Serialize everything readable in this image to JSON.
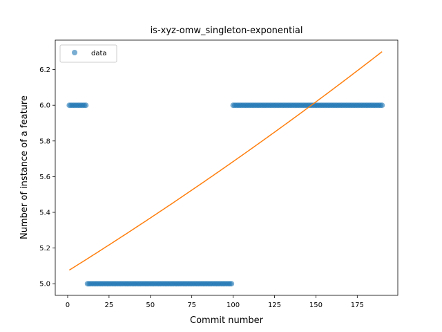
{
  "chart_data": {
    "type": "scatter",
    "title": "is-xyz-omw_singleton-exponential",
    "xlabel": "Commit number",
    "ylabel": "Number of instance of a feature",
    "xlim": [
      -7.5,
      199.5
    ],
    "ylim": [
      4.935,
      6.365
    ],
    "xticks": [
      0,
      25,
      50,
      75,
      100,
      125,
      150,
      175
    ],
    "yticks": [
      5.0,
      5.2,
      5.4,
      5.6,
      5.8,
      6.0,
      6.2
    ],
    "ytick_labels": [
      "5.0",
      "5.2",
      "5.4",
      "5.6",
      "5.8",
      "6.0",
      "6.2"
    ],
    "grid": false,
    "legend": {
      "position": "upper-left",
      "entries": [
        "data"
      ]
    },
    "series": [
      {
        "name": "data",
        "kind": "points",
        "color": "#1f77b4",
        "segments": [
          {
            "x_start": 1,
            "x_end": 11,
            "y": 6.0
          },
          {
            "x_start": 12,
            "x_end": 99,
            "y": 5.0
          },
          {
            "x_start": 100,
            "x_end": 190,
            "y": 6.0
          }
        ]
      },
      {
        "kind": "curve",
        "color": "#ff7f0e",
        "model": "exponential",
        "a": 5.0705,
        "b": 0.001143,
        "x_range": [
          1,
          190
        ]
      }
    ]
  }
}
